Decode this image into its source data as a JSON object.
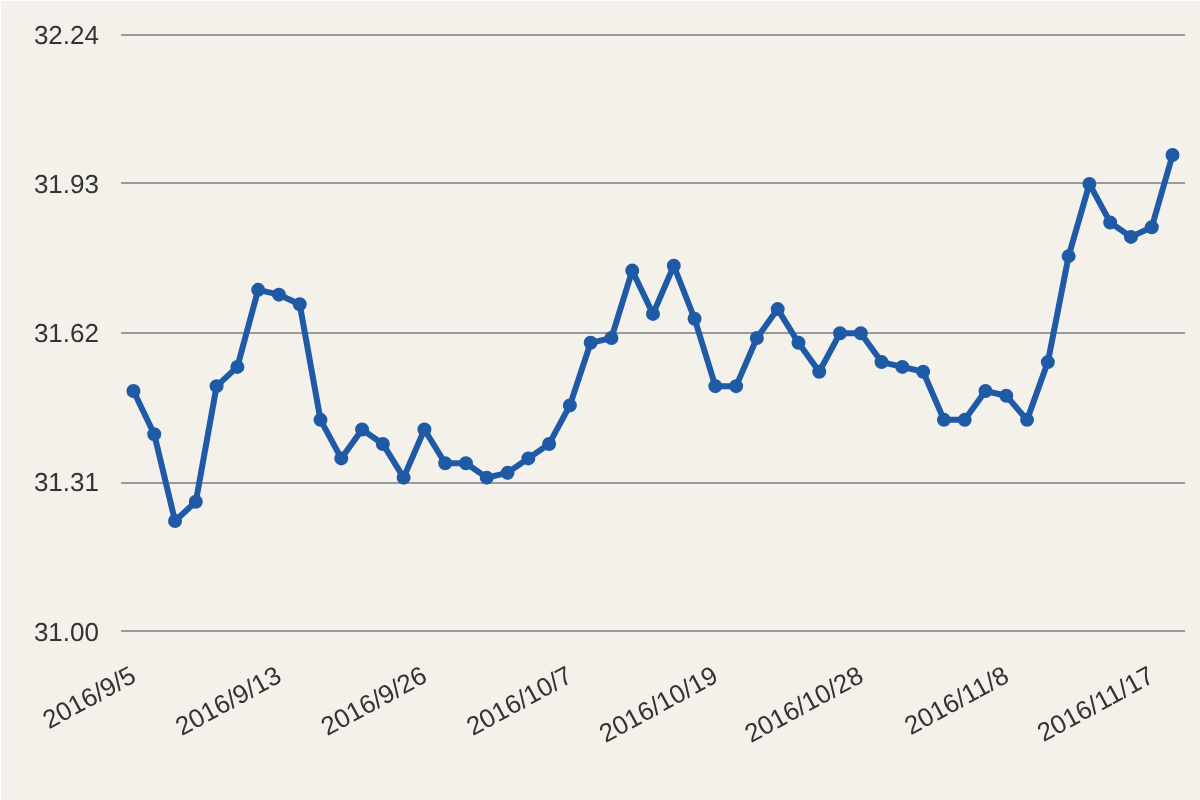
{
  "chart_data": {
    "type": "line",
    "categories": [
      "2016/9/5",
      null,
      null,
      null,
      null,
      null,
      null,
      "2016/9/13",
      null,
      null,
      null,
      null,
      null,
      null,
      "2016/9/26",
      null,
      null,
      null,
      null,
      null,
      null,
      "2016/10/7",
      null,
      null,
      null,
      null,
      null,
      null,
      "2016/10/19",
      null,
      null,
      null,
      null,
      null,
      null,
      "2016/10/28",
      null,
      null,
      null,
      null,
      null,
      null,
      "2016/11/8",
      null,
      null,
      null,
      null,
      null,
      null,
      "2016/11/17",
      null
    ],
    "series": [
      {
        "color": "#1f5aa6",
        "values": [
          31.5,
          31.41,
          31.23,
          31.27,
          31.51,
          31.55,
          31.71,
          31.7,
          31.68,
          31.44,
          31.36,
          31.42,
          31.39,
          31.32,
          31.42,
          31.35,
          31.35,
          31.32,
          31.33,
          31.36,
          31.39,
          31.47,
          31.6,
          31.61,
          31.75,
          31.66,
          31.76,
          31.65,
          31.51,
          31.51,
          31.61,
          31.67,
          31.6,
          31.54,
          31.62,
          31.62,
          31.56,
          31.55,
          31.54,
          31.44,
          31.44,
          31.5,
          31.49,
          31.44,
          31.56,
          31.78,
          31.93,
          31.85,
          31.82,
          31.84,
          31.99
        ]
      }
    ],
    "ylim": [
      30.96,
      32.26
    ],
    "yticks": [
      {
        "value": 31.0,
        "label": "31.00"
      },
      31.31,
      31.62,
      31.93,
      32.24
    ],
    "grid": "y",
    "marker": "circle",
    "line_style": "solid"
  }
}
